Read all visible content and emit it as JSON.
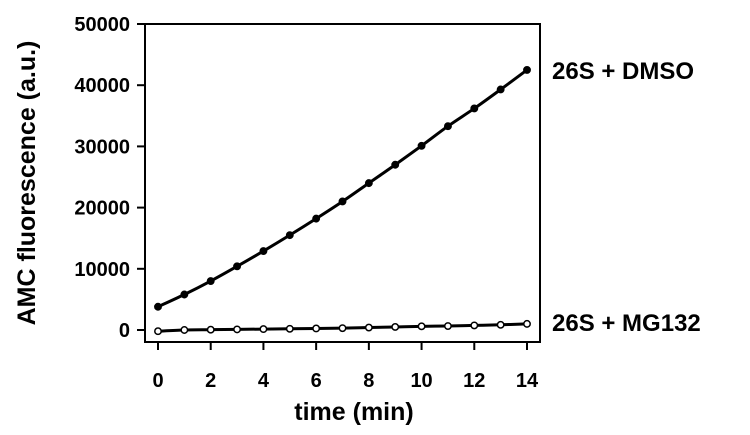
{
  "chart_data": {
    "type": "line",
    "xlabel": "time (min)",
    "ylabel": "AMC fluorescence (a.u.)",
    "xlim": [
      0,
      14
    ],
    "ylim": [
      0,
      50000
    ],
    "x_ticks": [
      0,
      2,
      4,
      6,
      8,
      10,
      12,
      14
    ],
    "y_ticks": [
      0,
      10000,
      20000,
      30000,
      40000,
      50000
    ],
    "x_tick_labels": [
      "0",
      "2",
      "4",
      "6",
      "8",
      "10",
      "12",
      "14"
    ],
    "y_tick_labels": [
      "0",
      "10000",
      "20000",
      "30000",
      "40000",
      "50000"
    ],
    "x": [
      0,
      1,
      2,
      3,
      4,
      5,
      6,
      7,
      8,
      9,
      10,
      11,
      12,
      13,
      14
    ],
    "series": [
      {
        "name": "26S + DMSO",
        "marker": "filled-circle",
        "color": "#000000",
        "values": [
          3800,
          5800,
          8000,
          10400,
          12900,
          15500,
          18200,
          21000,
          24000,
          27000,
          30100,
          33300,
          36200,
          39300,
          42500
        ]
      },
      {
        "name": "26S + MG132",
        "marker": "open-circle",
        "color": "#ffffff",
        "values": [
          -200,
          0,
          50,
          100,
          150,
          200,
          250,
          300,
          400,
          500,
          600,
          650,
          750,
          850,
          1000
        ]
      }
    ],
    "grid": false,
    "legend": "inline-right"
  }
}
